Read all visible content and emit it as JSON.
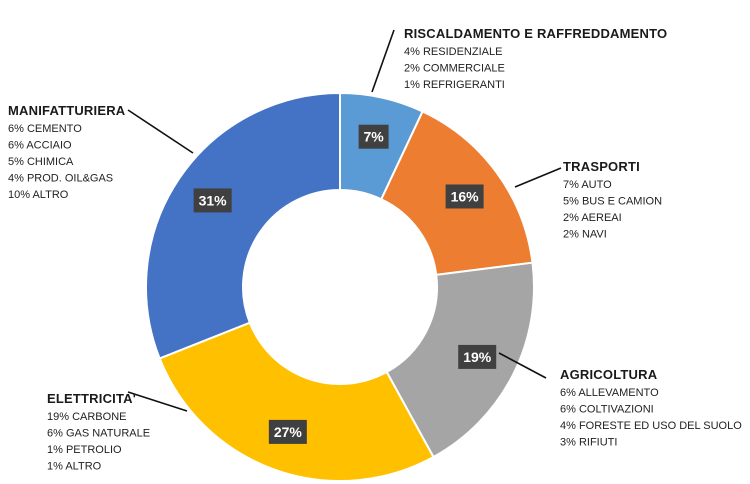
{
  "chart_data": {
    "type": "pie",
    "variant": "donut",
    "title": "",
    "categories": [
      {
        "name": "RISCALDAMENTO E RAFFREDDAMENTO",
        "value": 7,
        "label": "7%",
        "color": "#5b9bd5",
        "details": [
          "4% RESIDENZIALE",
          "2% COMMERCIALE",
          "1% REFRIGERANTI"
        ]
      },
      {
        "name": "TRASPORTI",
        "value": 16,
        "label": "16%",
        "color": "#ed7d31",
        "details": [
          "7% AUTO",
          "5% BUS E CAMION",
          "2% AEREAI",
          "2% NAVI"
        ]
      },
      {
        "name": "AGRICOLTURA",
        "value": 19,
        "label": "19%",
        "color": "#a5a5a5",
        "details": [
          "6% ALLEVAMENTO",
          "6% COLTIVAZIONI",
          "4% FORESTE ED USO DEL SUOLO",
          "3% RIFIUTI"
        ]
      },
      {
        "name": "ELETTRICITA'",
        "value": 27,
        "label": "27%",
        "color": "#ffc000",
        "details": [
          "19% CARBONE",
          "6% GAS NATURALE",
          "1% PETROLIO",
          "1% ALTRO"
        ]
      },
      {
        "name": "MANIFATTURIERA",
        "value": 31,
        "label": "31%",
        "color": "#4472c4",
        "details": [
          "6% CEMENTO",
          "6% ACCIAIO",
          "5% CHIMICA",
          "4% PROD. OIL&GAS",
          "10% ALTRO"
        ]
      }
    ]
  }
}
